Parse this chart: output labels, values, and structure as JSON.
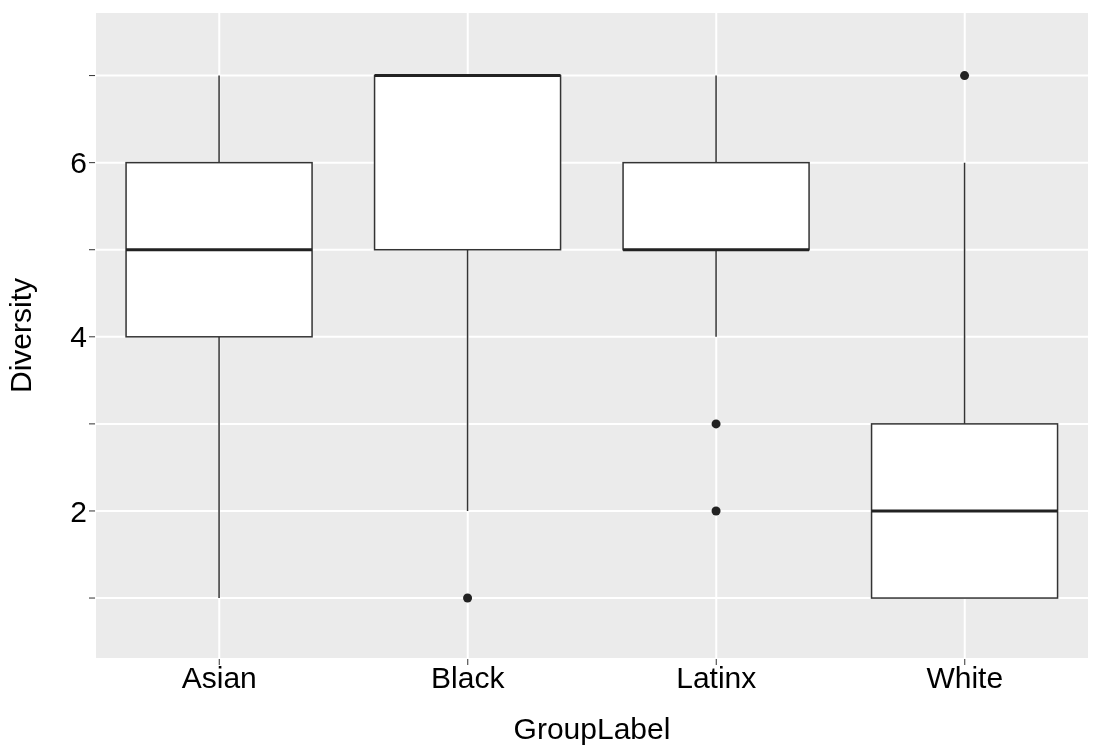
{
  "chart_data": {
    "type": "box",
    "xlabel": "GroupLabel",
    "ylabel": "Diversity",
    "categories": [
      "Asian",
      "Black",
      "Latinx",
      "White"
    ],
    "boxes": [
      {
        "low": 1,
        "q1": 4,
        "median": 5,
        "q3": 6,
        "high": 7
      },
      {
        "low": 2,
        "q1": 5,
        "median": 7,
        "q3": 7,
        "high": 7,
        "outliers": [
          1
        ]
      },
      {
        "low": 4,
        "q1": 5,
        "median": 5,
        "q3": 6,
        "high": 7,
        "outliers": [
          3,
          2
        ]
      },
      {
        "low": 1,
        "q1": 1,
        "median": 2,
        "q3": 3,
        "high": 6,
        "outliers": [
          7
        ]
      }
    ],
    "ylim": [
      0.3,
      7.73
    ],
    "yticks": [
      {
        "value": 1,
        "label": null
      },
      2,
      {
        "value": 3,
        "label": null
      },
      4,
      {
        "value": 5,
        "label": null
      },
      6,
      {
        "value": 7,
        "label": null
      }
    ],
    "grid": true
  }
}
